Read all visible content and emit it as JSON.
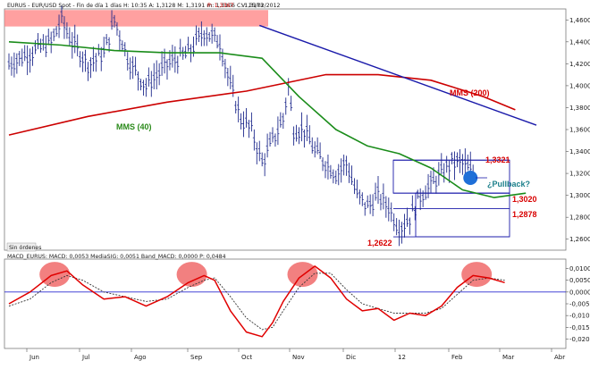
{
  "header": {
    "price_title": "EURUS - EUR/USD Spot - Fin de día 1 días H: 10:35 A: 1,3128 M: 1,3191 m: 1,3106 C: 1,3173",
    "price_change": "P: 1,3367",
    "price_date": "V: 15/02/2012",
    "macd_title": "MACD_EURUS: MACD: 0,0053 MediaSIG: 0,0051 Band_MACD: 0,0000 P: 0,0484",
    "sin_ordenes": "Sin órdenes"
  },
  "annotations": {
    "mms200": "MMS (200)",
    "mms40": "MMS (40)",
    "level_1": "1,3321",
    "level_2": "1,3020",
    "level_3": "1,2878",
    "level_4": "1,2622",
    "pullback": "¿Pullback?"
  },
  "colors": {
    "candles": "#1f2a8c",
    "mms40": "#1a8c1a",
    "mms200": "#cc0000",
    "trendline": "#1a1aaa",
    "resistance_box": "#ff8080",
    "macd": "#e00000",
    "signal": "#333333",
    "highlight": "#ee5555",
    "pullback_dot": "#1e6fd8"
  },
  "chart_data": [
    {
      "type": "candlestick",
      "title": "EURUS - EUR/USD Spot",
      "xlabel": "",
      "ylabel": "",
      "categories": [
        "Jun",
        "Jul",
        "Ago",
        "Sep",
        "Oct",
        "Nov",
        "Dic",
        "12",
        "Feb",
        "Mar",
        "Abr"
      ],
      "ylim": [
        1.25,
        1.47
      ],
      "y_ticks": [
        "1,4600",
        "1,4400",
        "1,4200",
        "1,4000",
        "1,3800",
        "1,3600",
        "1,3400",
        "1,3200",
        "1,3000",
        "1,2800",
        "1,2600"
      ],
      "grid": false,
      "series": [
        {
          "name": "MMS (40)",
          "type": "line",
          "x": [
            0,
            10,
            20,
            30,
            40,
            48,
            55,
            62,
            68,
            74,
            80,
            86,
            92,
            98
          ],
          "values": [
            1.44,
            1.437,
            1.432,
            1.43,
            1.43,
            1.425,
            1.39,
            1.36,
            1.345,
            1.338,
            1.325,
            1.305,
            1.298,
            1.302
          ]
        },
        {
          "name": "MMS (200)",
          "type": "line",
          "x": [
            0,
            15,
            30,
            45,
            60,
            70,
            80,
            90,
            96
          ],
          "values": [
            1.355,
            1.372,
            1.385,
            1.395,
            1.41,
            1.41,
            1.405,
            1.39,
            1.378
          ]
        }
      ],
      "levels": [
        1.3321,
        1.302,
        1.2878,
        1.2622
      ],
      "trendline": [
        [
          47.5,
          1.455
        ],
        [
          100,
          1.364
        ]
      ]
    },
    {
      "type": "line",
      "title": "MACD_EURUS",
      "xlabel": "",
      "ylabel": "",
      "categories": [
        "Jun",
        "Jul",
        "Ago",
        "Sep",
        "Oct",
        "Nov",
        "Dic",
        "12",
        "Feb",
        "Mar",
        "Abr"
      ],
      "ylim": [
        -0.024,
        0.014
      ],
      "y_ticks": [
        "0,0100",
        "0,0050",
        "0,0000",
        "-0,0050",
        "-0,0100",
        "-0,0150",
        "-0,0200"
      ],
      "series": [
        {
          "name": "MACD",
          "x": [
            0,
            4,
            8,
            11,
            14,
            18,
            22,
            26,
            30,
            34,
            37,
            39,
            42,
            45,
            48,
            50,
            52,
            55,
            58,
            61,
            64,
            67,
            70,
            73,
            76,
            79,
            82,
            85,
            88,
            91,
            94
          ],
          "values": [
            -0.005,
            0.0,
            0.007,
            0.009,
            0.003,
            -0.003,
            -0.002,
            -0.006,
            -0.002,
            0.004,
            0.007,
            0.005,
            -0.008,
            -0.017,
            -0.019,
            -0.013,
            -0.004,
            0.006,
            0.011,
            0.006,
            -0.003,
            -0.008,
            -0.007,
            -0.012,
            -0.009,
            -0.01,
            -0.006,
            0.002,
            0.007,
            0.006,
            0.004
          ]
        },
        {
          "name": "MediaSIG",
          "x": [
            0,
            4,
            8,
            11,
            14,
            18,
            22,
            26,
            30,
            34,
            37,
            39,
            42,
            45,
            48,
            50,
            52,
            55,
            58,
            61,
            64,
            67,
            70,
            73,
            76,
            79,
            82,
            85,
            88,
            91,
            94
          ],
          "values": [
            -0.006,
            -0.003,
            0.004,
            0.007,
            0.005,
            0.0,
            -0.002,
            -0.004,
            -0.003,
            0.002,
            0.005,
            0.006,
            -0.002,
            -0.011,
            -0.016,
            -0.015,
            -0.008,
            0.002,
            0.008,
            0.008,
            0.001,
            -0.005,
            -0.007,
            -0.009,
            -0.009,
            -0.009,
            -0.007,
            -0.001,
            0.005,
            0.006,
            0.005
          ]
        }
      ],
      "highlighted_peaks": 4
    }
  ]
}
